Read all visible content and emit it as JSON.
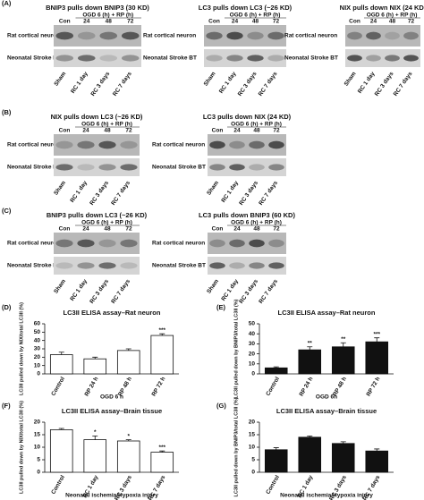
{
  "blot_labels": {
    "control": "Con",
    "treatment": "OGD 6 (h) + RP (h)",
    "hours": [
      "24",
      "48",
      "72"
    ],
    "rows": [
      "Rat cortical neuron",
      "Neonatal Stroke BT"
    ],
    "lanes": [
      "Sham",
      "RC 1 day",
      "RC 3 days",
      "RC 7 days"
    ]
  },
  "blot_panels": [
    {
      "label": "(A)",
      "blots": [
        {
          "title": "BNIP3 pulls down BNIP3 (30 KD)"
        },
        {
          "title": "LC3 pulls down LC3 (~26 KD)"
        },
        {
          "title": "NIX pulls down NIX (24 KD)"
        }
      ]
    },
    {
      "label": "(B)",
      "blots": [
        {
          "title": "NIX pulls down LC3 (~26 KD)"
        },
        {
          "title": "LC3 pulls down NIX (24 KD)"
        }
      ]
    },
    {
      "label": "(C)",
      "blots": [
        {
          "title": "BNIP3 pulls down LC3 (~26 KD)"
        },
        {
          "title": "LC3 pulls down BNIP3 (60 KD)"
        }
      ]
    }
  ],
  "chart_data": [
    {
      "type": "bar",
      "panel": "(D)",
      "title": "LC3II ELISA assay–Rat neuron",
      "y_label": "LC3II pulled down by NIX/total LC3II (%)",
      "x_label": "OGD 6 h",
      "categories": [
        "Control",
        "RP 24 h",
        "RP 48 h",
        "RP 72 h"
      ],
      "values": [
        23,
        18,
        28,
        46
      ],
      "errors": [
        3,
        2,
        2,
        2
      ],
      "annotations": [
        null,
        null,
        null,
        "***"
      ],
      "color": "#ffffff",
      "ylim": [
        0,
        60
      ],
      "yticks": [
        0,
        10,
        20,
        30,
        40,
        50,
        60
      ]
    },
    {
      "type": "bar",
      "panel": "(E)",
      "title": "LC3II ELISA assay–Rat neuron",
      "y_label": "LC3II pulled down by BNIP3/total LC3II (%)",
      "x_label": "OGD 6h",
      "categories": [
        "Control",
        "RP 24 h",
        "RP 48 h",
        "RP 72 h"
      ],
      "values": [
        6,
        24,
        27,
        32
      ],
      "errors": [
        1,
        3,
        4,
        4
      ],
      "annotations": [
        null,
        "**",
        "**",
        "***"
      ],
      "color": "#111111",
      "ylim": [
        0,
        50
      ],
      "yticks": [
        0,
        10,
        20,
        30,
        40,
        50
      ]
    },
    {
      "type": "bar",
      "panel": "(F)",
      "title": "LC3II ELISA assay–Brain tissue",
      "y_label": "LC3II pulled down by NIX/total LC3II (%)",
      "x_label": "Neonatal ischemia/Hypoxia injury",
      "categories": [
        "Control",
        "RC 1 day",
        "RC 3 days",
        "RC 7 days"
      ],
      "values": [
        17,
        13,
        12.5,
        8
      ],
      "errors": [
        0.5,
        1.5,
        0.5,
        0.5
      ],
      "annotations": [
        null,
        "*",
        "*",
        "***"
      ],
      "color": "#ffffff",
      "ylim": [
        0,
        20
      ],
      "yticks": [
        0,
        5,
        10,
        15,
        20
      ]
    },
    {
      "type": "bar",
      "panel": "(G)",
      "title": "LC3II ELISA assay–Brain tissue",
      "y_label": "LC3II pulled down by BNIP3/total LC3II (%)",
      "x_label": "Neonatal ischemia/Hypoxia injury",
      "categories": [
        "Control",
        "RC 1 day",
        "RC 3 days",
        "RC 7 days"
      ],
      "values": [
        9,
        14,
        11.5,
        8.5
      ],
      "errors": [
        0.8,
        0.5,
        0.7,
        0.8
      ],
      "annotations": [
        null,
        null,
        null,
        null
      ],
      "color": "#111111",
      "ylim": [
        0,
        20
      ],
      "yticks": [
        0,
        5,
        10,
        15,
        20
      ]
    }
  ]
}
